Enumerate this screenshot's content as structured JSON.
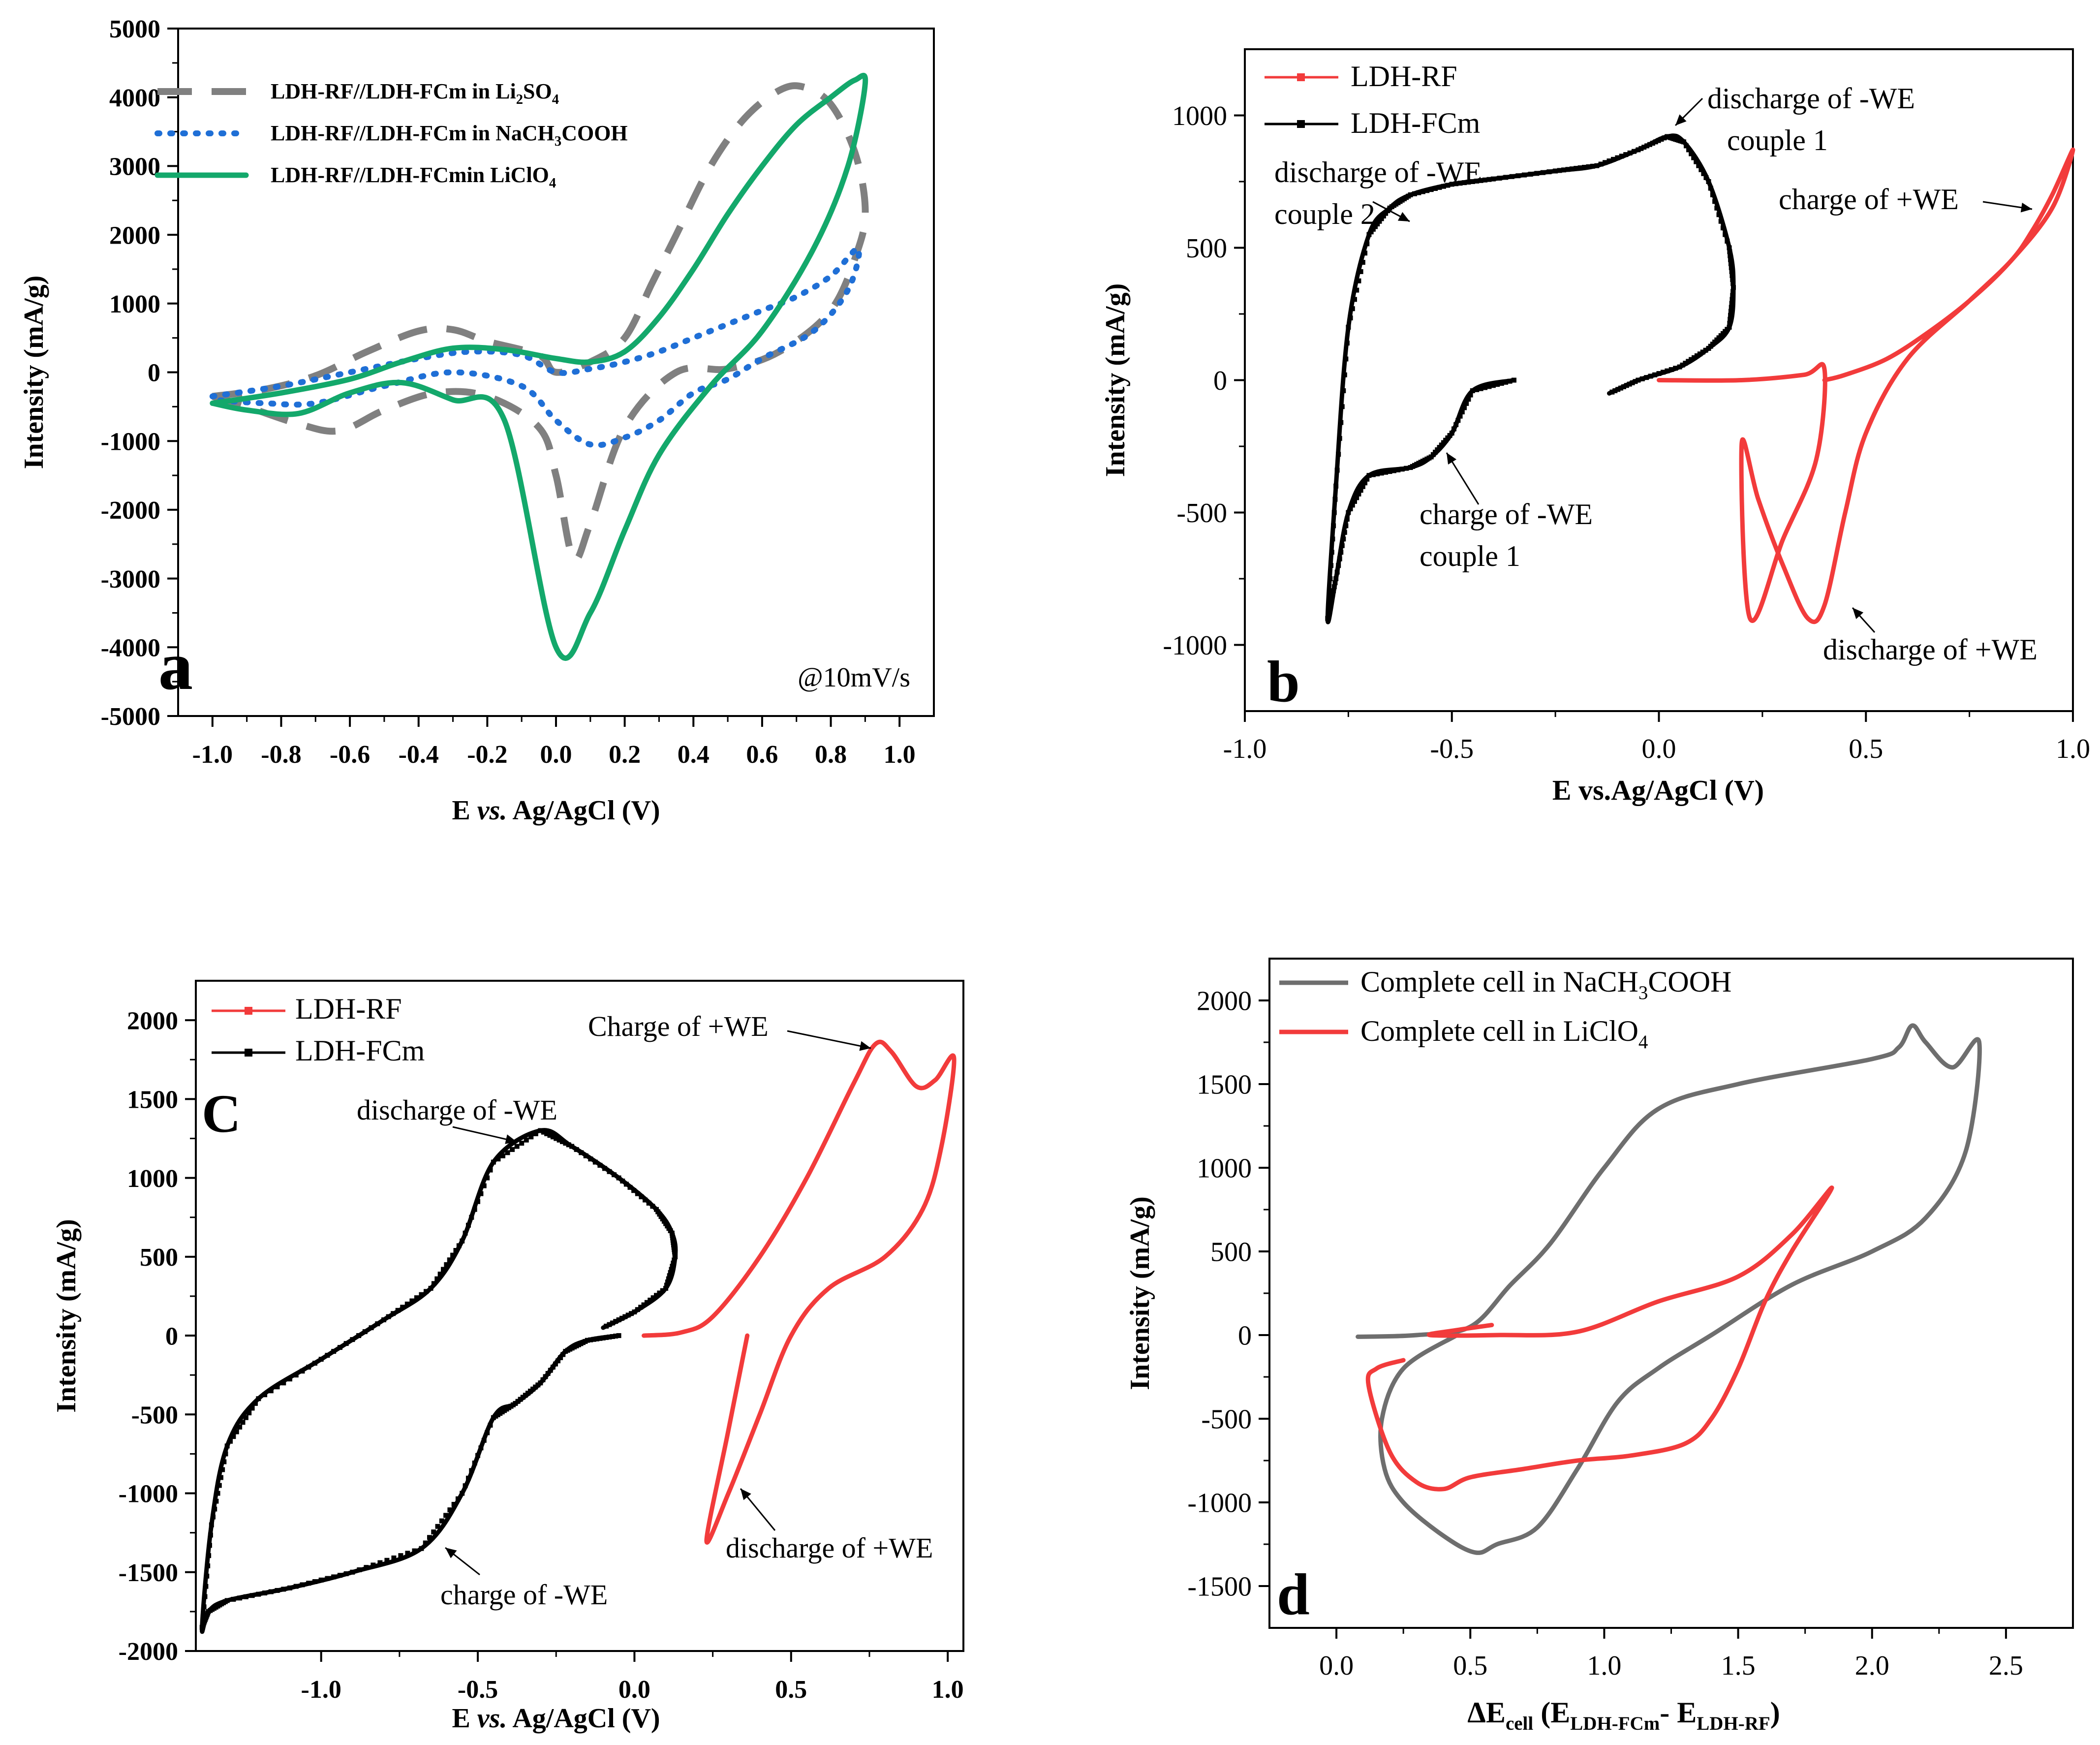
{
  "chart_data": [
    {
      "type": "line",
      "panel_label": "a",
      "title": "",
      "xlabel_pre": "E ",
      "xlabel_it": "vs.",
      "xlabel_post": " Ag/AgCl (V)",
      "ylabel": "Intensity (mA/g)",
      "xlim": [
        -1.1,
        1.1
      ],
      "ylim": [
        -5000,
        5000
      ],
      "xticks": [
        -1.0,
        -0.8,
        -0.6,
        -0.4,
        -0.2,
        0.0,
        0.2,
        0.4,
        0.6,
        0.8,
        1.0
      ],
      "xtick_labels": [
        "-1.0",
        "-0.8",
        "-0.6",
        "-0.4",
        "-0.2",
        "0.0",
        "0.2",
        "0.4",
        "0.6",
        "0.8",
        "1.0"
      ],
      "yticks": [
        -5000,
        -4000,
        -3000,
        -2000,
        -1000,
        0,
        1000,
        2000,
        3000,
        4000,
        5000
      ],
      "ytick_labels": [
        "-5000",
        "-4000",
        "-3000",
        "-2000",
        "-1000",
        "0",
        "1000",
        "2000",
        "3000",
        "4000",
        "5000"
      ],
      "annotation": "@10mV/s",
      "legend": {
        "position": "top-left"
      },
      "series": [
        {
          "name": "LDH-RF//LDH-FCm in Li2SO4",
          "legend_parts": [
            [
              "LDH-RF//LDH-FCm in Li",
              ""
            ],
            [
              "2",
              "sub"
            ],
            [
              "SO",
              ""
            ],
            [
              "4",
              "sub"
            ]
          ],
          "color": "#808080",
          "style": "dashed",
          "x": [
            -1.0,
            -0.85,
            -0.7,
            -0.55,
            -0.4,
            -0.3,
            -0.2,
            -0.05,
            0.0,
            0.1,
            0.2,
            0.28,
            0.35,
            0.45,
            0.55,
            0.65,
            0.72,
            0.8,
            0.87,
            0.9,
            0.88,
            0.8,
            0.65,
            0.5,
            0.35,
            0.2,
            0.1,
            0.05,
            0.0,
            -0.05,
            -0.2,
            -0.35,
            -0.5,
            -0.63,
            -0.75,
            -0.9,
            -1.0
          ],
          "y": [
            -350,
            -250,
            -50,
            300,
            600,
            620,
            450,
            250,
            0,
            150,
            500,
            1300,
            2000,
            3000,
            3700,
            4100,
            4150,
            3900,
            3200,
            2400,
            1800,
            900,
            300,
            50,
            0,
            -800,
            -2200,
            -2700,
            -1500,
            -800,
            -350,
            -300,
            -550,
            -850,
            -750,
            -500,
            -350
          ]
        },
        {
          "name": "LDH-RF//LDH-FCm in NaCH3COOH",
          "legend_parts": [
            [
              "LDH-RF//LDH-FCm in NaCH",
              ""
            ],
            [
              "3",
              "sub"
            ],
            [
              "COOH",
              ""
            ]
          ],
          "color": "#1f6fd6",
          "style": "dotted",
          "x": [
            -1.0,
            -0.8,
            -0.6,
            -0.4,
            -0.25,
            -0.1,
            0.0,
            0.1,
            0.2,
            0.3,
            0.4,
            0.5,
            0.6,
            0.7,
            0.8,
            0.88,
            0.85,
            0.75,
            0.6,
            0.5,
            0.4,
            0.3,
            0.2,
            0.1,
            0.0,
            -0.1,
            -0.3,
            -0.5,
            -0.7,
            -0.85,
            -1.0
          ],
          "y": [
            -350,
            -200,
            0,
            200,
            300,
            250,
            0,
            50,
            150,
            300,
            500,
            700,
            900,
            1100,
            1400,
            1800,
            1200,
            600,
            200,
            -100,
            -300,
            -700,
            -950,
            -1050,
            -700,
            -200,
            0,
            -200,
            -450,
            -450,
            -400
          ]
        },
        {
          "name": "LDH-RF//LDH-FCmin LiClO4",
          "legend_parts": [
            [
              "LDH-RF//LDH-FCmin LiClO",
              ""
            ],
            [
              "4",
              "sub"
            ]
          ],
          "color": "#13a86b",
          "style": "solid",
          "x": [
            -1.0,
            -0.8,
            -0.6,
            -0.45,
            -0.3,
            -0.15,
            0.0,
            0.1,
            0.2,
            0.3,
            0.4,
            0.5,
            0.6,
            0.7,
            0.8,
            0.87,
            0.9,
            0.85,
            0.75,
            0.6,
            0.45,
            0.3,
            0.2,
            0.1,
            0.0,
            -0.15,
            -0.3,
            -0.45,
            -0.6,
            -0.75,
            -0.9,
            -1.0
          ],
          "y": [
            -450,
            -300,
            -100,
            150,
            350,
            330,
            200,
            150,
            300,
            800,
            1500,
            2300,
            3000,
            3600,
            4000,
            4250,
            4200,
            3000,
            1800,
            600,
            -200,
            -1200,
            -2300,
            -3500,
            -4000,
            -700,
            -400,
            -150,
            -300,
            -600,
            -550,
            -450
          ]
        }
      ]
    },
    {
      "type": "line",
      "panel_label": "b",
      "xlabel_pre": "E vs.Ag/AgCl (V)",
      "xlabel_it": "",
      "xlabel_post": "",
      "ylabel": "Intensity (mA/g)",
      "xlim": [
        -1.0,
        1.0
      ],
      "ylim": [
        -1250,
        1250
      ],
      "xticks": [
        -1.0,
        -0.5,
        0.0,
        0.5,
        1.0
      ],
      "xtick_labels": [
        "-1.0",
        "-0.5",
        "0.0",
        "0.5",
        "1.0"
      ],
      "yticks": [
        -1000,
        -500,
        0,
        500,
        1000
      ],
      "ytick_labels": [
        "-1000",
        "-500",
        "0",
        "500",
        "1000"
      ],
      "legend": {
        "position": "top-left"
      },
      "annotations": [
        {
          "lines": [
            "discharge of -WE",
            "couple 1"
          ]
        },
        {
          "lines": [
            "discharge of -WE",
            "couple 2"
          ]
        },
        {
          "lines": [
            "charge of +WE"
          ]
        },
        {
          "lines": [
            "charge of -WE",
            "couple 1"
          ]
        },
        {
          "lines": [
            "discharge of +WE"
          ]
        }
      ],
      "series": [
        {
          "name": "LDH-RF",
          "color": "#f23b3b",
          "marker": "square",
          "x": [
            0.0,
            0.2,
            0.35,
            0.4,
            0.38,
            0.3,
            0.22,
            0.2,
            0.24,
            0.3,
            0.36,
            0.4,
            0.45,
            0.5,
            0.6,
            0.75,
            0.85,
            0.9,
            0.95,
            1.0,
            0.95,
            0.85,
            0.75,
            0.65,
            0.55,
            0.45,
            0.4
          ],
          "y": [
            0,
            0,
            20,
            40,
            -300,
            -600,
            -900,
            -240,
            -450,
            -700,
            -900,
            -850,
            -500,
            -200,
            80,
            300,
            450,
            560,
            700,
            870,
            650,
            450,
            300,
            180,
            80,
            20,
            0
          ]
        },
        {
          "name": "LDH-FCm",
          "color": "#000000",
          "marker": "square",
          "x": [
            -0.35,
            -0.45,
            -0.5,
            -0.55,
            -0.6,
            -0.7,
            -0.75,
            -0.78,
            -0.8,
            -0.78,
            -0.75,
            -0.7,
            -0.65,
            -0.6,
            -0.5,
            -0.4,
            -0.25,
            -0.15,
            -0.05,
            0.02,
            0.06,
            0.12,
            0.17,
            0.18,
            0.17,
            0.12,
            0.05,
            -0.05,
            -0.12
          ],
          "y": [
            0,
            -40,
            -200,
            -290,
            -330,
            -360,
            -500,
            -750,
            -900,
            -400,
            200,
            550,
            650,
            700,
            740,
            760,
            790,
            810,
            870,
            920,
            900,
            750,
            500,
            350,
            200,
            120,
            50,
            0,
            -50
          ]
        }
      ]
    },
    {
      "type": "line",
      "panel_label": "C",
      "xlabel_pre": "E ",
      "xlabel_it": "vs.",
      "xlabel_post": " Ag/AgCl (V)",
      "ylabel": "Intensity (mA/g)",
      "xlim": [
        -1.4,
        1.05
      ],
      "ylim": [
        -2000,
        2250
      ],
      "xticks": [
        -1.0,
        -0.5,
        0.0,
        0.5,
        1.0
      ],
      "xtick_labels": [
        "-1.0",
        "-0.5",
        "0.0",
        "0.5",
        "1.0"
      ],
      "yticks": [
        -2000,
        -1500,
        -1000,
        -500,
        0,
        500,
        1000,
        1500,
        2000
      ],
      "ytick_labels": [
        "-2000",
        "-1500",
        "-1000",
        "-500",
        "0",
        "500",
        "1000",
        "1500",
        "2000"
      ],
      "legend": {
        "position": "top-left"
      },
      "annotations": [
        {
          "lines": [
            "Charge of +WE"
          ]
        },
        {
          "lines": [
            "discharge of -WE"
          ]
        },
        {
          "lines": [
            "discharge of +WE"
          ]
        },
        {
          "lines": [
            "charge of -WE"
          ]
        }
      ],
      "series": [
        {
          "name": "LDH-RF",
          "color": "#f23b3b",
          "marker": "square",
          "x": [
            0.03,
            0.15,
            0.25,
            0.4,
            0.55,
            0.7,
            0.77,
            0.82,
            0.9,
            0.96,
            1.02,
            0.98,
            0.92,
            0.8,
            0.62,
            0.5,
            0.4,
            0.3,
            0.23,
            0.3,
            0.36
          ],
          "y": [
            0,
            20,
            120,
            500,
            1000,
            1600,
            1850,
            1800,
            1580,
            1620,
            1760,
            1200,
            800,
            500,
            300,
            0,
            -500,
            -1000,
            -1300,
            -600,
            0
          ]
        },
        {
          "name": "LDH-FCm",
          "color": "#000000",
          "marker": "square",
          "x": [
            -0.05,
            -0.15,
            -0.22,
            -0.3,
            -0.38,
            -0.45,
            -0.55,
            -0.68,
            -0.9,
            -1.1,
            -1.3,
            -1.36,
            -1.38,
            -1.35,
            -1.3,
            -1.2,
            -1.0,
            -0.8,
            -0.65,
            -0.55,
            -0.45,
            -0.3,
            -0.2,
            -0.05,
            0.07,
            0.12,
            0.13,
            0.1,
            0.0,
            -0.1
          ],
          "y": [
            0,
            -30,
            -100,
            -300,
            -430,
            -520,
            -1000,
            -1350,
            -1500,
            -1600,
            -1680,
            -1750,
            -1850,
            -1200,
            -700,
            -400,
            -150,
            100,
            300,
            600,
            1100,
            1300,
            1200,
            1000,
            800,
            650,
            500,
            300,
            150,
            50
          ]
        }
      ]
    },
    {
      "type": "line",
      "panel_label": "d",
      "xlabel_main": "ΔE",
      "xlabel_sub": "cell",
      "xlabel_mid": " (E",
      "xlabel_sub2": "LDH-FCm",
      "xlabel_mid2": "- E",
      "xlabel_sub3": "LDH-RF",
      "xlabel_end": ")",
      "ylabel": "Intensity (mA/g)",
      "xlim": [
        -0.25,
        2.75
      ],
      "ylim": [
        -1750,
        2250
      ],
      "xticks": [
        0.0,
        0.5,
        1.0,
        1.5,
        2.0,
        2.5
      ],
      "xtick_labels": [
        "0.0",
        "0.5",
        "1.0",
        "1.5",
        "2.0",
        "2.5"
      ],
      "yticks": [
        -1500,
        -1000,
        -500,
        0,
        500,
        1000,
        1500,
        2000
      ],
      "ytick_labels": [
        "-1500",
        "-1000",
        "-500",
        "0",
        "500",
        "1000",
        "1500",
        "2000"
      ],
      "legend": {
        "position": "top-left"
      },
      "series": [
        {
          "name": "Complete cell in NaCH3COOH",
          "legend_parts": [
            [
              "Complete cell in NaCH",
              ""
            ],
            [
              "3",
              "sub"
            ],
            [
              "COOH",
              ""
            ]
          ],
          "color": "#6e6e6e",
          "x": [
            0.08,
            0.3,
            0.5,
            0.65,
            0.8,
            1.0,
            1.2,
            1.5,
            2.0,
            2.1,
            2.15,
            2.2,
            2.3,
            2.4,
            2.35,
            2.2,
            2.0,
            1.7,
            1.4,
            1.2,
            1.05,
            0.9,
            0.75,
            0.6,
            0.52,
            0.4,
            0.25,
            0.18,
            0.17,
            0.25,
            0.45
          ],
          "y": [
            -10,
            0,
            50,
            300,
            550,
            1000,
            1350,
            1500,
            1650,
            1720,
            1850,
            1750,
            1600,
            1750,
            1100,
            700,
            500,
            300,
            0,
            -200,
            -400,
            -800,
            -1150,
            -1250,
            -1300,
            -1200,
            -1000,
            -800,
            -500,
            -200,
            0
          ]
        },
        {
          "name": "Complete cell in LiClO4",
          "legend_parts": [
            [
              "Complete cell in LiClO",
              ""
            ],
            [
              "4",
              "sub"
            ]
          ],
          "color": "#f23b3b",
          "x": [
            0.58,
            0.45,
            0.35,
            0.6,
            0.9,
            1.2,
            1.5,
            1.7,
            1.85,
            1.7,
            1.6,
            1.5,
            1.4,
            1.3,
            1.1,
            0.9,
            0.7,
            0.5,
            0.4,
            0.3,
            0.2,
            0.12,
            0.15,
            0.25
          ],
          "y": [
            60,
            30,
            0,
            0,
            20,
            200,
            350,
            600,
            880,
            500,
            200,
            -200,
            -500,
            -650,
            -720,
            -750,
            -800,
            -850,
            -920,
            -880,
            -700,
            -300,
            -200,
            -150
          ]
        }
      ]
    }
  ]
}
